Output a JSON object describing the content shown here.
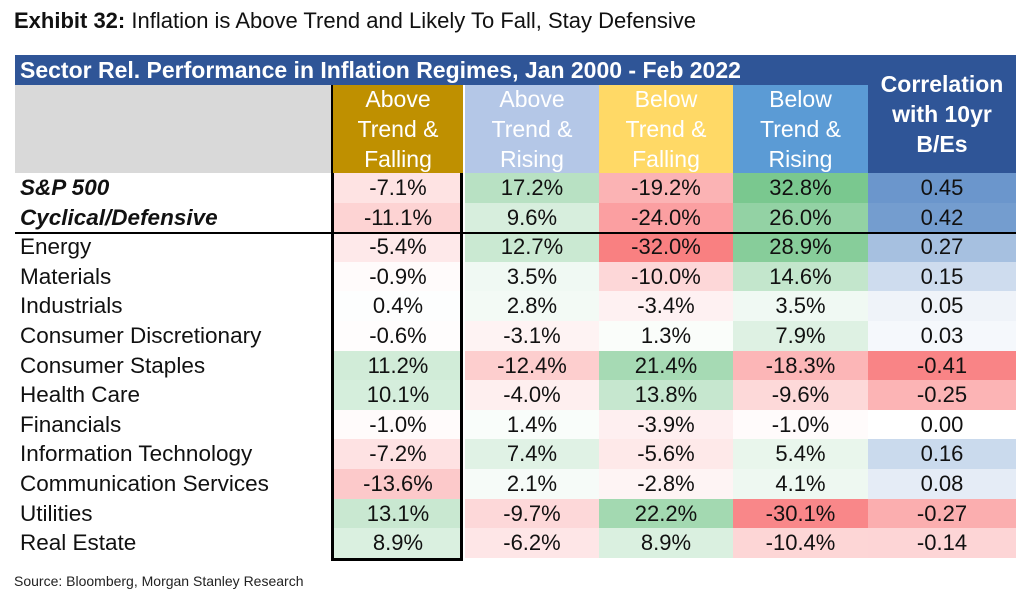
{
  "exhibit": {
    "label": "Exhibit 32:",
    "title": "Inflation is Above Trend and Likely To Fall, Stay Defensive"
  },
  "source": "Source: Bloomberg, Morgan Stanley Research",
  "colors": {
    "banner": "#2f5597",
    "green": "#63be7b",
    "red": "#f8696b",
    "blue": "#5a8ac6"
  },
  "chart_data": {
    "type": "table",
    "title": "Sector Rel. Performance in Inflation Regimes, Jan 2000 - Feb 2022",
    "columns": [
      {
        "lines": [
          "Above",
          "Trend &",
          "Falling"
        ],
        "bg": "#bf9000",
        "fg": "#ffffff"
      },
      {
        "lines": [
          "Above",
          "Trend &",
          "Rising"
        ],
        "bg": "#b4c7e7",
        "fg": "#ffffff"
      },
      {
        "lines": [
          "Below",
          "Trend &",
          "Falling"
        ],
        "bg": "#ffd966",
        "fg": "#ffffff"
      },
      {
        "lines": [
          "Below",
          "Trend &",
          "Rising"
        ],
        "bg": "#5b9bd5",
        "fg": "#ffffff"
      }
    ],
    "corr_header": [
      "Correlation",
      "with 10yr",
      "B/Es"
    ],
    "rows": [
      {
        "label": "S&P 500",
        "style": "bold-italic",
        "values": [
          -7.1,
          17.2,
          -19.2,
          32.8
        ],
        "text": [
          "-7.1%",
          "17.2%",
          "-19.2%",
          "32.8%"
        ],
        "corr": 0.45,
        "corr_text": "0.45"
      },
      {
        "label": "Cyclical/Defensive",
        "style": "bold-italic",
        "values": [
          -11.1,
          9.6,
          -24.0,
          26.0
        ],
        "text": [
          "-11.1%",
          "9.6%",
          "-24.0%",
          "26.0%"
        ],
        "corr": 0.42,
        "corr_text": "0.42"
      },
      {
        "label": "Energy",
        "values": [
          -5.4,
          12.7,
          -32.0,
          28.9
        ],
        "text": [
          "-5.4%",
          "12.7%",
          "-32.0%",
          "28.9%"
        ],
        "corr": 0.27,
        "corr_text": "0.27"
      },
      {
        "label": "Materials",
        "values": [
          -0.9,
          3.5,
          -10.0,
          14.6
        ],
        "text": [
          "-0.9%",
          "3.5%",
          "-10.0%",
          "14.6%"
        ],
        "corr": 0.15,
        "corr_text": "0.15"
      },
      {
        "label": "Industrials",
        "values": [
          0.4,
          2.8,
          -3.4,
          3.5
        ],
        "text": [
          "0.4%",
          "2.8%",
          "-3.4%",
          "3.5%"
        ],
        "corr": 0.05,
        "corr_text": "0.05"
      },
      {
        "label": "Consumer Discretionary",
        "values": [
          -0.6,
          -3.1,
          1.3,
          7.9
        ],
        "text": [
          "-0.6%",
          "-3.1%",
          "1.3%",
          "7.9%"
        ],
        "corr": 0.03,
        "corr_text": "0.03"
      },
      {
        "label": "Consumer Staples",
        "values": [
          11.2,
          -12.4,
          21.4,
          -18.3
        ],
        "text": [
          "11.2%",
          "-12.4%",
          "21.4%",
          "-18.3%"
        ],
        "corr": -0.41,
        "corr_text": "-0.41"
      },
      {
        "label": "Health Care",
        "values": [
          10.1,
          -4.0,
          13.8,
          -9.6
        ],
        "text": [
          "10.1%",
          "-4.0%",
          "13.8%",
          "-9.6%"
        ],
        "corr": -0.25,
        "corr_text": "-0.25"
      },
      {
        "label": "Financials",
        "values": [
          -1.0,
          1.4,
          -3.9,
          -1.0
        ],
        "text": [
          "-1.0%",
          "1.4%",
          "-3.9%",
          "-1.0%"
        ],
        "corr": 0.0,
        "corr_text": "0.00"
      },
      {
        "label": "Information Technology",
        "values": [
          -7.2,
          7.4,
          -5.6,
          5.4
        ],
        "text": [
          "-7.2%",
          "7.4%",
          "-5.6%",
          "5.4%"
        ],
        "corr": 0.16,
        "corr_text": "0.16"
      },
      {
        "label": "Communication Services",
        "values": [
          -13.6,
          2.1,
          -2.8,
          4.1
        ],
        "text": [
          "-13.6%",
          "2.1%",
          "-2.8%",
          "4.1%"
        ],
        "corr": 0.08,
        "corr_text": "0.08"
      },
      {
        "label": "Utilities",
        "values": [
          13.1,
          -9.7,
          22.2,
          -30.1
        ],
        "text": [
          "13.1%",
          "-9.7%",
          "22.2%",
          "-30.1%"
        ],
        "corr": -0.27,
        "corr_text": "-0.27"
      },
      {
        "label": "Real Estate",
        "values": [
          8.9,
          -6.2,
          8.9,
          -10.4
        ],
        "text": [
          "8.9%",
          "-6.2%",
          "8.9%",
          "-10.4%"
        ],
        "corr": -0.14,
        "corr_text": "-0.14"
      }
    ]
  }
}
